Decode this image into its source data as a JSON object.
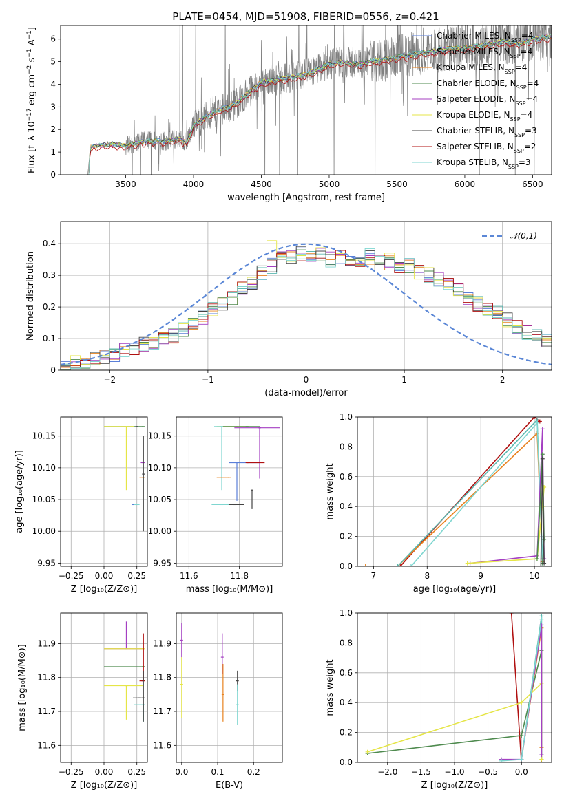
{
  "figure_title": "PLATE=0454, MJD=51908, FIBERID=0556, z=0.421",
  "legend": [
    {
      "label": "Chabrier MILES, N",
      "sub": "SSP",
      "suffix": "=4",
      "color": "#5b7fd8"
    },
    {
      "label": "Salpeter MILES, N",
      "sub": "SSP",
      "suffix": "=4",
      "color": "#5bb8b0"
    },
    {
      "label": "Kroupa MILES, N",
      "sub": "SSP",
      "suffix": "=4",
      "color": "#e8821e"
    },
    {
      "label": "Chabrier ELODIE, N",
      "sub": "SSP",
      "suffix": "=4",
      "color": "#4e8a4e"
    },
    {
      "label": "Salpeter ELODIE, N",
      "sub": "SSP",
      "suffix": "=4",
      "color": "#a43fc2"
    },
    {
      "label": "Kroupa ELODIE, N",
      "sub": "SSP",
      "suffix": "=4",
      "color": "#e5e547"
    },
    {
      "label": "Chabrier STELIB, N",
      "sub": "SSP",
      "suffix": "=3",
      "color": "#444444"
    },
    {
      "label": "Salpeter STELIB, N",
      "sub": "SSP",
      "suffix": "=2",
      "color": "#b01010"
    },
    {
      "label": "Kroupa STELIB, N",
      "sub": "SSP",
      "suffix": "=3",
      "color": "#7fd6d0"
    }
  ],
  "chart_data": [
    {
      "id": "spectrum",
      "type": "line",
      "xlabel": "wavelength [Angstrom, rest frame]",
      "ylabel": "Flux [f_λ 10^-17 erg cm^-2 s^-1 A^-1]",
      "xlim": [
        3020,
        6640
      ],
      "ylim": [
        0,
        6.6
      ],
      "xticks": [
        3500,
        4000,
        4500,
        5000,
        5500,
        6000,
        6500
      ],
      "yticks": [
        0,
        1,
        2,
        3,
        4,
        5,
        6
      ],
      "data_color": "#808080",
      "model_continuum": {
        "x": [
          3220,
          3240,
          3300,
          3400,
          3500,
          3600,
          3700,
          3800,
          3900,
          3950,
          4000,
          4100,
          4200,
          4300,
          4400,
          4500,
          4600,
          4700,
          4800,
          4900,
          5000,
          5100,
          5200,
          5300,
          5400,
          5500,
          5600,
          5700,
          5800,
          5900,
          6000,
          6100,
          6200,
          6300,
          6400,
          6500,
          6600
        ],
        "y": [
          0,
          1.2,
          1.3,
          1.35,
          1.3,
          1.45,
          1.5,
          1.5,
          1.6,
          1.4,
          2.2,
          2.6,
          2.9,
          3.1,
          3.6,
          4.1,
          4.2,
          4.3,
          4.4,
          4.6,
          4.9,
          5.0,
          4.9,
          5.0,
          5.1,
          5.2,
          5.3,
          5.4,
          5.5,
          5.6,
          5.6,
          5.7,
          5.8,
          5.9,
          5.8,
          6.0,
          6.1
        ]
      }
    },
    {
      "id": "residuals",
      "type": "line",
      "xlabel": "(data-model)/error",
      "ylabel": "Normed distribution",
      "xlim": [
        -2.5,
        2.5
      ],
      "ylim": [
        0,
        0.47
      ],
      "xticks": [
        -2,
        -1,
        0,
        1,
        2
      ],
      "yticks": [
        0.0,
        0.1,
        0.2,
        0.3,
        0.4
      ],
      "legend": "𝒩(0,1)",
      "gaussian_color": "#5b87d6",
      "bins_start": -2.5,
      "bin_width": 0.1,
      "hist_template": [
        0.02,
        0.025,
        0.03,
        0.035,
        0.04,
        0.05,
        0.06,
        0.07,
        0.08,
        0.09,
        0.1,
        0.11,
        0.13,
        0.15,
        0.17,
        0.19,
        0.21,
        0.23,
        0.26,
        0.28,
        0.31,
        0.33,
        0.35,
        0.36,
        0.37,
        0.36,
        0.37,
        0.35,
        0.36,
        0.34,
        0.35,
        0.36,
        0.34,
        0.35,
        0.32,
        0.33,
        0.31,
        0.3,
        0.29,
        0.27,
        0.25,
        0.23,
        0.21,
        0.19,
        0.18,
        0.16,
        0.14,
        0.12,
        0.11,
        0.09,
        0.08,
        0.07,
        0.06,
        0.05,
        0.05
      ]
    },
    {
      "id": "age_vs_Z",
      "type": "scatter",
      "xlabel": "Z [log10(Z/Z⊙)]",
      "ylabel": "age [log10(age/yr)]",
      "xlim": [
        -0.33,
        0.33
      ],
      "ylim": [
        9.945,
        10.18
      ],
      "xticks": [
        -0.25,
        0.0,
        0.25
      ],
      "xticklabels": [
        "−0.25",
        "0.00",
        "0.25"
      ],
      "yticks": [
        9.95,
        10.0,
        10.05,
        10.1,
        10.15
      ],
      "yticklabels": [
        "9.95",
        "10.00",
        "10.05",
        "10.10",
        "10.15"
      ],
      "points": [
        {
          "x": 0.3,
          "y": 10.165,
          "xerr": [
            0.3,
            0.0
          ],
          "yerr": [
            0.0,
            0.0
          ],
          "series": 3
        },
        {
          "x": 0.22,
          "y": 10.165,
          "xerr": [
            0.22,
            0.0
          ],
          "yerr": [
            0.0,
            0.0
          ],
          "series": 5
        },
        {
          "x": 0.17,
          "y": 10.165,
          "xerr": [
            0.0,
            0.0
          ],
          "yerr": [
            0.1,
            0.0
          ],
          "series": 5
        },
        {
          "x": 0.25,
          "y": 10.165,
          "xerr": [
            0.0,
            0.0
          ],
          "yerr": [
            0.0,
            0.0
          ],
          "series": 6
        },
        {
          "x": 0.3,
          "y": 10.108,
          "xerr": [
            0.02,
            0.0
          ],
          "yerr": [
            0.0,
            0.0
          ],
          "series": 4
        },
        {
          "x": 0.3,
          "y": 10.085,
          "xerr": [
            0.03,
            0.0
          ],
          "yerr": [
            0.0,
            0.0
          ],
          "series": 2
        },
        {
          "x": 0.3,
          "y": 10.09,
          "xerr": [
            0.0,
            0.0
          ],
          "yerr": [
            0.09,
            0.06
          ],
          "series": 6
        },
        {
          "x": 0.26,
          "y": 10.042,
          "xerr": [
            0.05,
            0.0
          ],
          "yerr": [
            0.0,
            0.0
          ],
          "series": 8
        },
        {
          "x": 0.22,
          "y": 10.042,
          "xerr": [
            0.0,
            0.0
          ],
          "yerr": [
            0.0,
            0.0
          ],
          "series": 0
        }
      ]
    },
    {
      "id": "age_vs_mass",
      "type": "scatter",
      "xlabel": "mass [log10(M/M⊙)]",
      "ylabel": "",
      "xlim": [
        11.55,
        11.97
      ],
      "ylim": [
        9.945,
        10.18
      ],
      "xticks": [
        11.6,
        11.8
      ],
      "xticklabels": [
        "11.6",
        "11.8"
      ],
      "yticks": [
        9.95,
        10.0,
        10.05,
        10.1,
        10.15
      ],
      "yticklabels": [
        "9.95",
        "10.00",
        "10.05",
        "10.10",
        "10.15"
      ],
      "points": [
        {
          "x": 11.88,
          "y": 10.163,
          "xerr": [
            0.1,
            0.08
          ],
          "yerr": [
            0.08,
            0.0
          ],
          "series": 4
        },
        {
          "x": 11.79,
          "y": 10.165,
          "xerr": [
            0.08,
            0.05
          ],
          "yerr": [
            0.0,
            0.0
          ],
          "series": 5
        },
        {
          "x": 11.83,
          "y": 10.165,
          "xerr": [
            0.1,
            0.05
          ],
          "yerr": [
            0.0,
            0.0
          ],
          "series": 3
        },
        {
          "x": 11.73,
          "y": 10.165,
          "xerr": [
            0.03,
            0.0
          ],
          "yerr": [
            0.1,
            0.0
          ],
          "series": 8
        },
        {
          "x": 11.79,
          "y": 10.108,
          "xerr": [
            0.03,
            0.09
          ],
          "yerr": [
            0.06,
            0.0
          ],
          "series": 0
        },
        {
          "x": 11.76,
          "y": 10.085,
          "xerr": [
            0.05,
            0.0
          ],
          "yerr": [
            0.0,
            0.0
          ],
          "series": 2
        },
        {
          "x": 11.83,
          "y": 10.108,
          "xerr": [
            0.0,
            0.07
          ],
          "yerr": [
            0.0,
            0.0
          ],
          "series": 7
        },
        {
          "x": 11.73,
          "y": 10.042,
          "xerr": [
            0.04,
            0.06
          ],
          "yerr": [
            0.0,
            0.0
          ],
          "series": 8
        },
        {
          "x": 11.78,
          "y": 10.042,
          "xerr": [
            0.02,
            0.04
          ],
          "yerr": [
            0.0,
            0.0
          ],
          "series": 6
        },
        {
          "x": 11.85,
          "y": 10.065,
          "xerr": [
            0.0,
            0.0
          ],
          "yerr": [
            0.03,
            0.0
          ],
          "series": 6
        }
      ]
    },
    {
      "id": "weight_vs_age",
      "type": "line",
      "xlabel": "age [log10(age/yr)]",
      "ylabel": "mass weight",
      "xlim": [
        6.7,
        10.32
      ],
      "ylim": [
        0,
        1.0
      ],
      "xticks": [
        7,
        8,
        9,
        10
      ],
      "yticks": [
        0.0,
        0.2,
        0.4,
        0.6,
        0.8,
        1.0
      ],
      "yticklabels": [
        "0.0",
        "0.2",
        "0.4",
        "0.6",
        "0.8",
        "1.0"
      ],
      "series": [
        {
          "series": 7,
          "x": [
            7.5,
            10.0,
            10.1
          ],
          "y": [
            0.0,
            1.0,
            0.97
          ]
        },
        {
          "series": 2,
          "x": [
            6.85,
            7.45,
            10.05,
            10.15
          ],
          "y": [
            0.0,
            0.0,
            0.89,
            0.03
          ]
        },
        {
          "series": 1,
          "x": [
            7.45,
            10.05,
            10.15
          ],
          "y": [
            0.0,
            0.98,
            0.05
          ]
        },
        {
          "series": 8,
          "x": [
            7.7,
            10.05,
            10.15
          ],
          "y": [
            0.0,
            0.96,
            0.02
          ]
        },
        {
          "series": 4,
          "x": [
            8.8,
            10.05,
            10.15,
            10.18
          ],
          "y": [
            0.02,
            0.07,
            0.92,
            0.05
          ]
        },
        {
          "series": 5,
          "x": [
            8.75,
            10.05,
            10.18,
            10.15
          ],
          "y": [
            0.02,
            0.05,
            0.53,
            0.4
          ]
        },
        {
          "series": 3,
          "x": [
            10.05,
            10.15,
            10.18,
            10.15
          ],
          "y": [
            0.05,
            0.75,
            0.18,
            0.02
          ]
        },
        {
          "series": 6,
          "x": [
            10.12,
            10.15,
            10.18
          ],
          "y": [
            0.0,
            0.72,
            0.02
          ]
        }
      ]
    },
    {
      "id": "mass_vs_Z",
      "type": "scatter",
      "xlabel": "Z [log10(Z/Z⊙)]",
      "ylabel": "mass [log10(M/M⊙)]",
      "xlim": [
        -0.33,
        0.33
      ],
      "ylim": [
        11.55,
        11.99
      ],
      "xticks": [
        -0.25,
        0.0,
        0.25
      ],
      "xticklabels": [
        "−0.25",
        "0.00",
        "0.25"
      ],
      "yticks": [
        11.6,
        11.7,
        11.8,
        11.9
      ],
      "yticklabels": [
        "11.6",
        "11.7",
        "11.8",
        "11.9"
      ],
      "points": [
        {
          "x": 0.17,
          "y": 11.885,
          "xerr": [
            0.17,
            0.13
          ],
          "yerr": [
            0.0,
            0.08
          ],
          "series": 4
        },
        {
          "x": 0.3,
          "y": 11.885,
          "xerr": [
            0.3,
            0.0
          ],
          "yerr": [
            0.0,
            0.0
          ],
          "series": 5
        },
        {
          "x": 0.3,
          "y": 11.832,
          "xerr": [
            0.3,
            0.0
          ],
          "yerr": [
            0.0,
            0.0
          ],
          "series": 3
        },
        {
          "x": 0.17,
          "y": 11.776,
          "xerr": [
            0.17,
            0.13
          ],
          "yerr": [
            0.1,
            0.0
          ],
          "series": 5
        },
        {
          "x": 0.3,
          "y": 11.79,
          "xerr": [
            0.03,
            0.0
          ],
          "yerr": [
            0.0,
            0.14
          ],
          "series": 7
        },
        {
          "x": 0.27,
          "y": 11.74,
          "xerr": [
            0.05,
            0.03
          ],
          "yerr": [
            0.0,
            0.0
          ],
          "series": 6
        },
        {
          "x": 0.3,
          "y": 11.72,
          "xerr": [
            0.07,
            0.0
          ],
          "yerr": [
            0.05,
            0.0
          ],
          "series": 8
        },
        {
          "x": 0.3,
          "y": 11.74,
          "xerr": [
            0.0,
            0.0
          ],
          "yerr": [
            0.07,
            0.08
          ],
          "series": 6
        }
      ]
    },
    {
      "id": "mass_vs_EBV",
      "type": "scatter",
      "xlabel": "E(B-V)",
      "ylabel": "",
      "xlim": [
        -0.015,
        0.28
      ],
      "ylim": [
        11.55,
        11.99
      ],
      "xticks": [
        0.0,
        0.1,
        0.2
      ],
      "xticklabels": [
        "0.0",
        "0.1",
        "0.2"
      ],
      "yticks": [
        11.6,
        11.7,
        11.8,
        11.9
      ],
      "yticklabels": [
        "11.6",
        "11.7",
        "11.8",
        "11.9"
      ],
      "points": [
        {
          "x": 0.0,
          "y": 11.91,
          "xerr": [
            0.0,
            0.0
          ],
          "yerr": [
            0.05,
            0.05
          ],
          "series": 4
        },
        {
          "x": 0.0,
          "y": 11.78,
          "xerr": [
            0.0,
            0.0
          ],
          "yerr": [
            0.1,
            0.08
          ],
          "series": 5
        },
        {
          "x": 0.113,
          "y": 11.86,
          "xerr": [
            0.0,
            0.0
          ],
          "yerr": [
            0.05,
            0.07
          ],
          "series": 4
        },
        {
          "x": 0.115,
          "y": 11.75,
          "xerr": [
            0.0,
            0.0
          ],
          "yerr": [
            0.08,
            0.09
          ],
          "series": 2
        },
        {
          "x": 0.155,
          "y": 11.79,
          "xerr": [
            0.0,
            0.0
          ],
          "yerr": [
            0.03,
            0.03
          ],
          "series": 6
        },
        {
          "x": 0.155,
          "y": 11.72,
          "xerr": [
            0.0,
            0.0
          ],
          "yerr": [
            0.06,
            0.06
          ],
          "series": 8
        }
      ]
    },
    {
      "id": "weight_vs_Z",
      "type": "line",
      "xlabel": "Z [log10(Z/Z⊙)]",
      "ylabel": "mass weight",
      "xlim": [
        -2.45,
        0.45
      ],
      "ylim": [
        0,
        1.0
      ],
      "xticks": [
        -2.0,
        -1.5,
        -1.0,
        -0.5,
        0.0
      ],
      "xticklabels": [
        "−2.0",
        "−1.5",
        "−1.0",
        "−0.5",
        "0.0"
      ],
      "yticks": [
        0.0,
        0.2,
        0.4,
        0.6,
        0.8,
        1.0
      ],
      "yticklabels": [
        "0.0",
        "0.2",
        "0.4",
        "0.6",
        "0.8",
        "1.0"
      ],
      "series": [
        {
          "series": 7,
          "x": [
            -0.15,
            0.0,
            0.3
          ],
          "y": [
            1.0,
            0.0,
            0.0
          ]
        },
        {
          "series": 3,
          "x": [
            -2.3,
            0.0,
            0.3,
            0.3
          ],
          "y": [
            0.06,
            0.18,
            0.75,
            0.02
          ]
        },
        {
          "series": 5,
          "x": [
            -2.3,
            0.0,
            0.3,
            0.3
          ],
          "y": [
            0.07,
            0.4,
            0.53,
            0.02
          ]
        },
        {
          "series": 2,
          "x": [
            0.0,
            0.3,
            0.3
          ],
          "y": [
            0.02,
            0.9,
            0.1
          ]
        },
        {
          "series": 1,
          "x": [
            0.0,
            0.3,
            0.3
          ],
          "y": [
            0.02,
            0.98,
            0.05
          ]
        },
        {
          "series": 4,
          "x": [
            -0.3,
            0.0,
            0.3,
            0.3
          ],
          "y": [
            0.02,
            0.02,
            0.92,
            0.05
          ]
        },
        {
          "series": 8,
          "x": [
            -0.3,
            0.0,
            0.3
          ],
          "y": [
            0.01,
            0.02,
            0.96
          ]
        }
      ]
    }
  ]
}
